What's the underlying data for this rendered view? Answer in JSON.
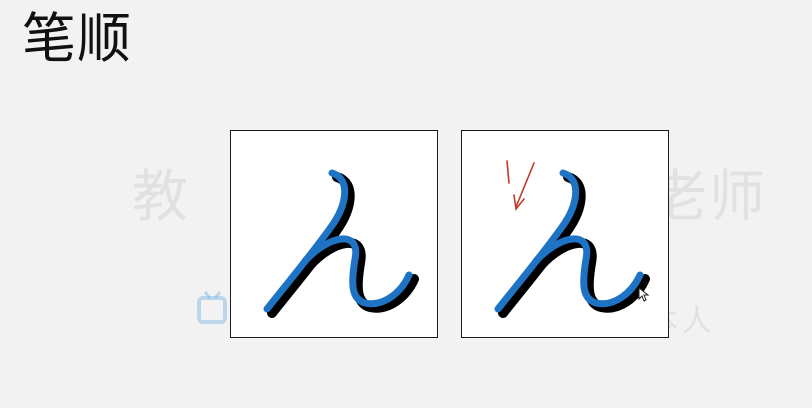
{
  "header": {
    "title": "笔顺"
  },
  "watermark": {
    "left_text": "教",
    "right_text": "老师",
    "bottom_right_text": "本人"
  },
  "panels": [
    {
      "name": "stroke-sample",
      "stroke_color": "#1f73c4",
      "shadow_color": "#000000"
    },
    {
      "name": "stroke-order-demo",
      "stroke_color": "#1f73c4",
      "shadow_color": "#000000",
      "arrow_color": "#c0392b"
    }
  ],
  "icons": [
    "watermark-logo-icon",
    "stroke-direction-arrow-icon",
    "mouse-cursor-icon"
  ]
}
